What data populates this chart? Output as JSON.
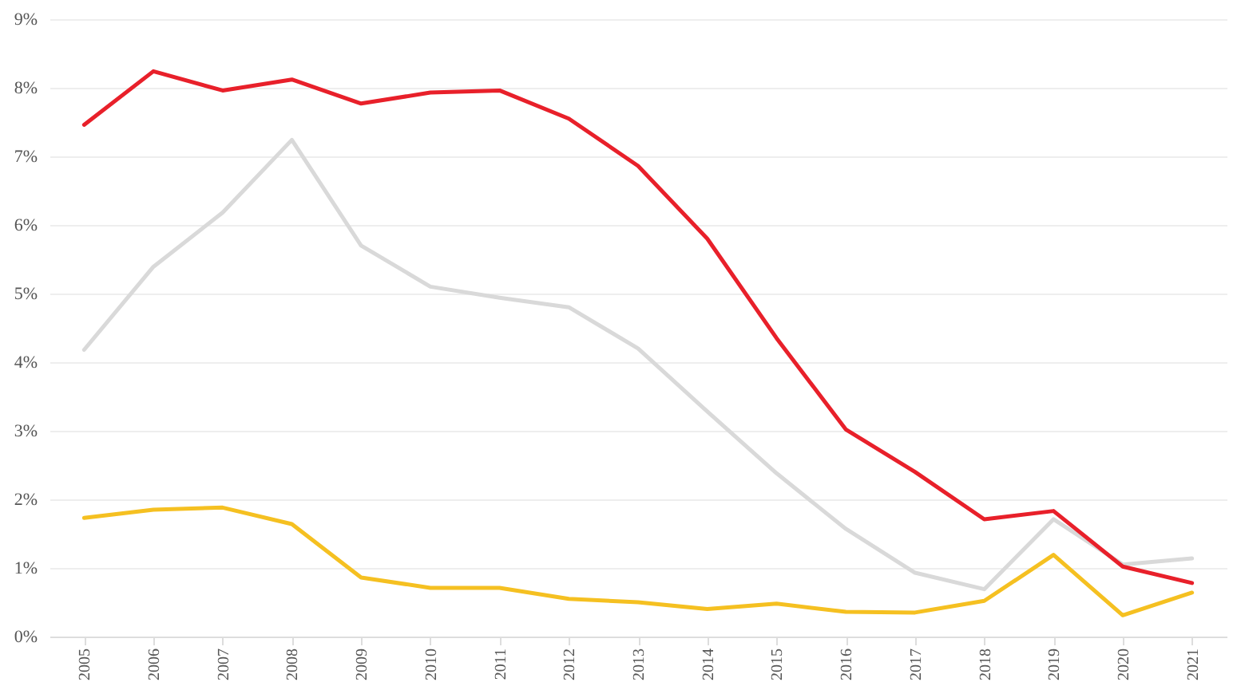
{
  "chart_data": {
    "type": "line",
    "categories": [
      "2005",
      "2006",
      "2007",
      "2008",
      "2009",
      "2010",
      "2011",
      "2012",
      "2013",
      "2014",
      "2015",
      "2016",
      "2017",
      "2018",
      "2019",
      "2020",
      "2021"
    ],
    "series": [
      {
        "color": "#d9d9d9",
        "values": [
          4.18,
          5.39,
          6.18,
          7.24,
          5.7,
          5.1,
          4.94,
          4.8,
          4.2,
          3.28,
          2.38,
          1.57,
          0.93,
          0.69,
          1.71,
          1.05,
          1.14
        ]
      },
      {
        "color": "#f5c021",
        "values": [
          1.73,
          1.85,
          1.88,
          1.64,
          0.86,
          0.71,
          0.71,
          0.55,
          0.5,
          0.4,
          0.48,
          0.36,
          0.35,
          0.52,
          1.19,
          0.31,
          0.64
        ]
      },
      {
        "color": "#e8202a",
        "values": [
          7.46,
          8.24,
          7.96,
          8.12,
          7.77,
          7.93,
          7.96,
          7.55,
          6.86,
          5.8,
          4.35,
          3.02,
          2.4,
          1.71,
          1.83,
          1.02,
          0.78
        ]
      }
    ],
    "ylim": [
      0,
      9
    ],
    "yticks": [
      {
        "value": 0,
        "label": "0%"
      },
      {
        "value": 1,
        "label": "1%"
      },
      {
        "value": 2,
        "label": "2%"
      },
      {
        "value": 3,
        "label": "3%"
      },
      {
        "value": 4,
        "label": "4%"
      },
      {
        "value": 5,
        "label": "5%"
      },
      {
        "value": 6,
        "label": "6%"
      },
      {
        "value": 7,
        "label": "7%"
      },
      {
        "value": 8,
        "label": "8%"
      },
      {
        "value": 9,
        "label": "9%"
      }
    ],
    "grid": "y",
    "legend": false
  }
}
